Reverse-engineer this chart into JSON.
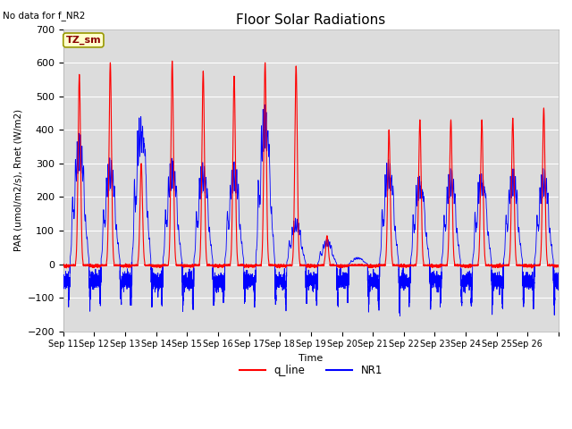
{
  "title": "Floor Solar Radiations",
  "subtitle": "No data for f_NR2",
  "xlabel": "Time",
  "ylabel": "PAR (umol/m2/s), Rnet (W/m2)",
  "ylim": [
    -200,
    700
  ],
  "yticks": [
    -200,
    -100,
    0,
    100,
    200,
    300,
    400,
    500,
    600,
    700
  ],
  "x_tick_labels": [
    "Sep 11",
    "Sep 12",
    "Sep 13",
    "Sep 14",
    "Sep 15",
    "Sep 16",
    "Sep 17",
    "Sep 18",
    "Sep 19",
    "Sep 20",
    "Sep 21",
    "Sep 22",
    "Sep 23",
    "Sep 24",
    "Sep 25",
    "Sep 26"
  ],
  "annotation_text": "TZ_sm",
  "legend_labels": [
    "q_line",
    "NR1"
  ],
  "line_colors": [
    "red",
    "blue"
  ],
  "bg_color": "#dcdcdc",
  "grid_color": "#ffffff",
  "day_peaks_q": [
    565,
    600,
    300,
    605,
    575,
    560,
    600,
    590,
    85,
    0,
    400,
    430,
    430,
    430,
    435,
    465
  ],
  "day_peaks_nr1": [
    370,
    300,
    440,
    300,
    290,
    290,
    460,
    130,
    70,
    20,
    300,
    260,
    270,
    270,
    270,
    270
  ]
}
